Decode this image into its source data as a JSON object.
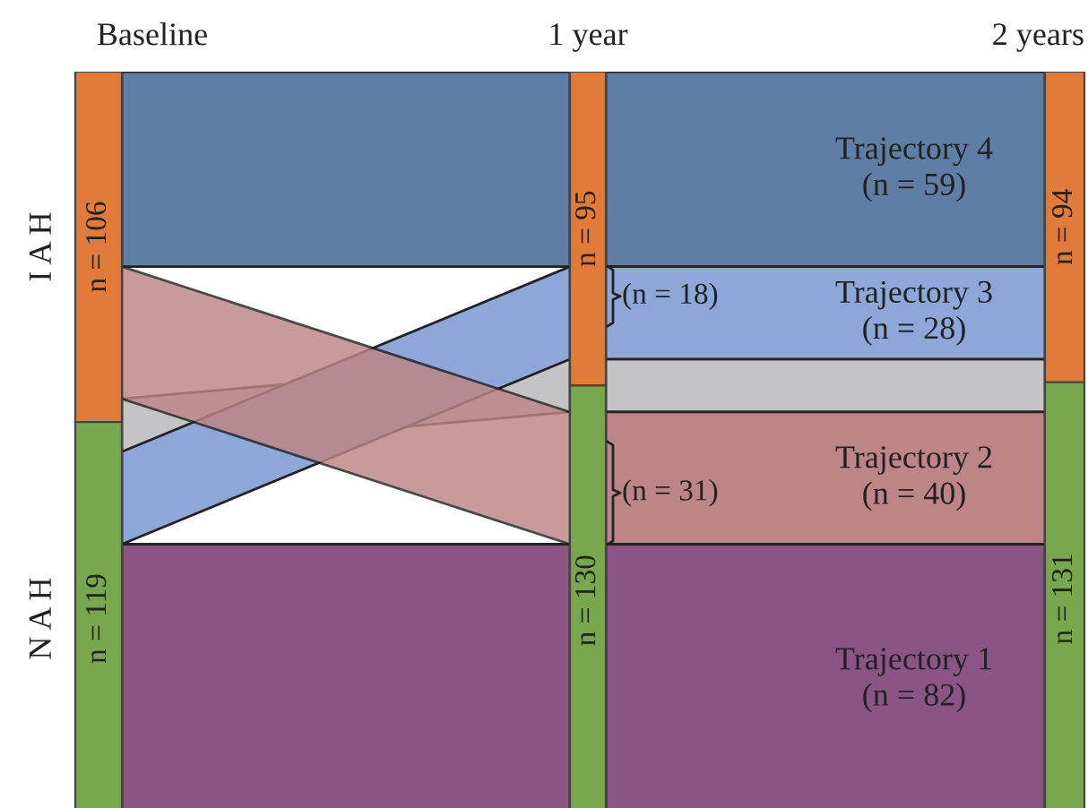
{
  "chart_data": {
    "type": "other",
    "categories": [
      "Baseline",
      "1 year",
      "2 years"
    ],
    "series": [
      {
        "name": "I A H",
        "type": "bar",
        "color": "#e07b39",
        "values": [
          106,
          95,
          94
        ],
        "value_labels": [
          "n = 106",
          "n = 95",
          "n = 94"
        ]
      },
      {
        "name": "N A H",
        "type": "bar",
        "color": "#77a84d",
        "values": [
          119,
          130,
          131
        ],
        "value_labels": [
          "n = 119",
          "n = 130",
          "n = 131"
        ]
      },
      {
        "name": "Trajectory 4",
        "type": "area",
        "color": "#5f7ea5",
        "values": [
          null,
          null,
          59
        ],
        "value_labels": [
          null,
          null,
          "(n = 59)"
        ]
      },
      {
        "name": "Trajectory 3",
        "type": "area",
        "color": "#8da7d8",
        "values": [
          null,
          18,
          28
        ],
        "value_labels": [
          null,
          "(n = 18)",
          "(n = 28)"
        ]
      },
      {
        "type": "area",
        "color": "#c4c4c6",
        "values": [
          null,
          null,
          null
        ]
      },
      {
        "name": "Trajectory 2",
        "type": "area",
        "color": "#bd8585",
        "values": [
          null,
          31,
          40
        ],
        "value_labels": [
          null,
          "(n = 31)",
          "(n = 40)"
        ]
      },
      {
        "name": "Trajectory 1",
        "type": "area",
        "color": "#8a5585",
        "values": [
          null,
          null,
          82
        ],
        "value_labels": [
          null,
          null,
          "(n = 82)"
        ]
      }
    ]
  }
}
